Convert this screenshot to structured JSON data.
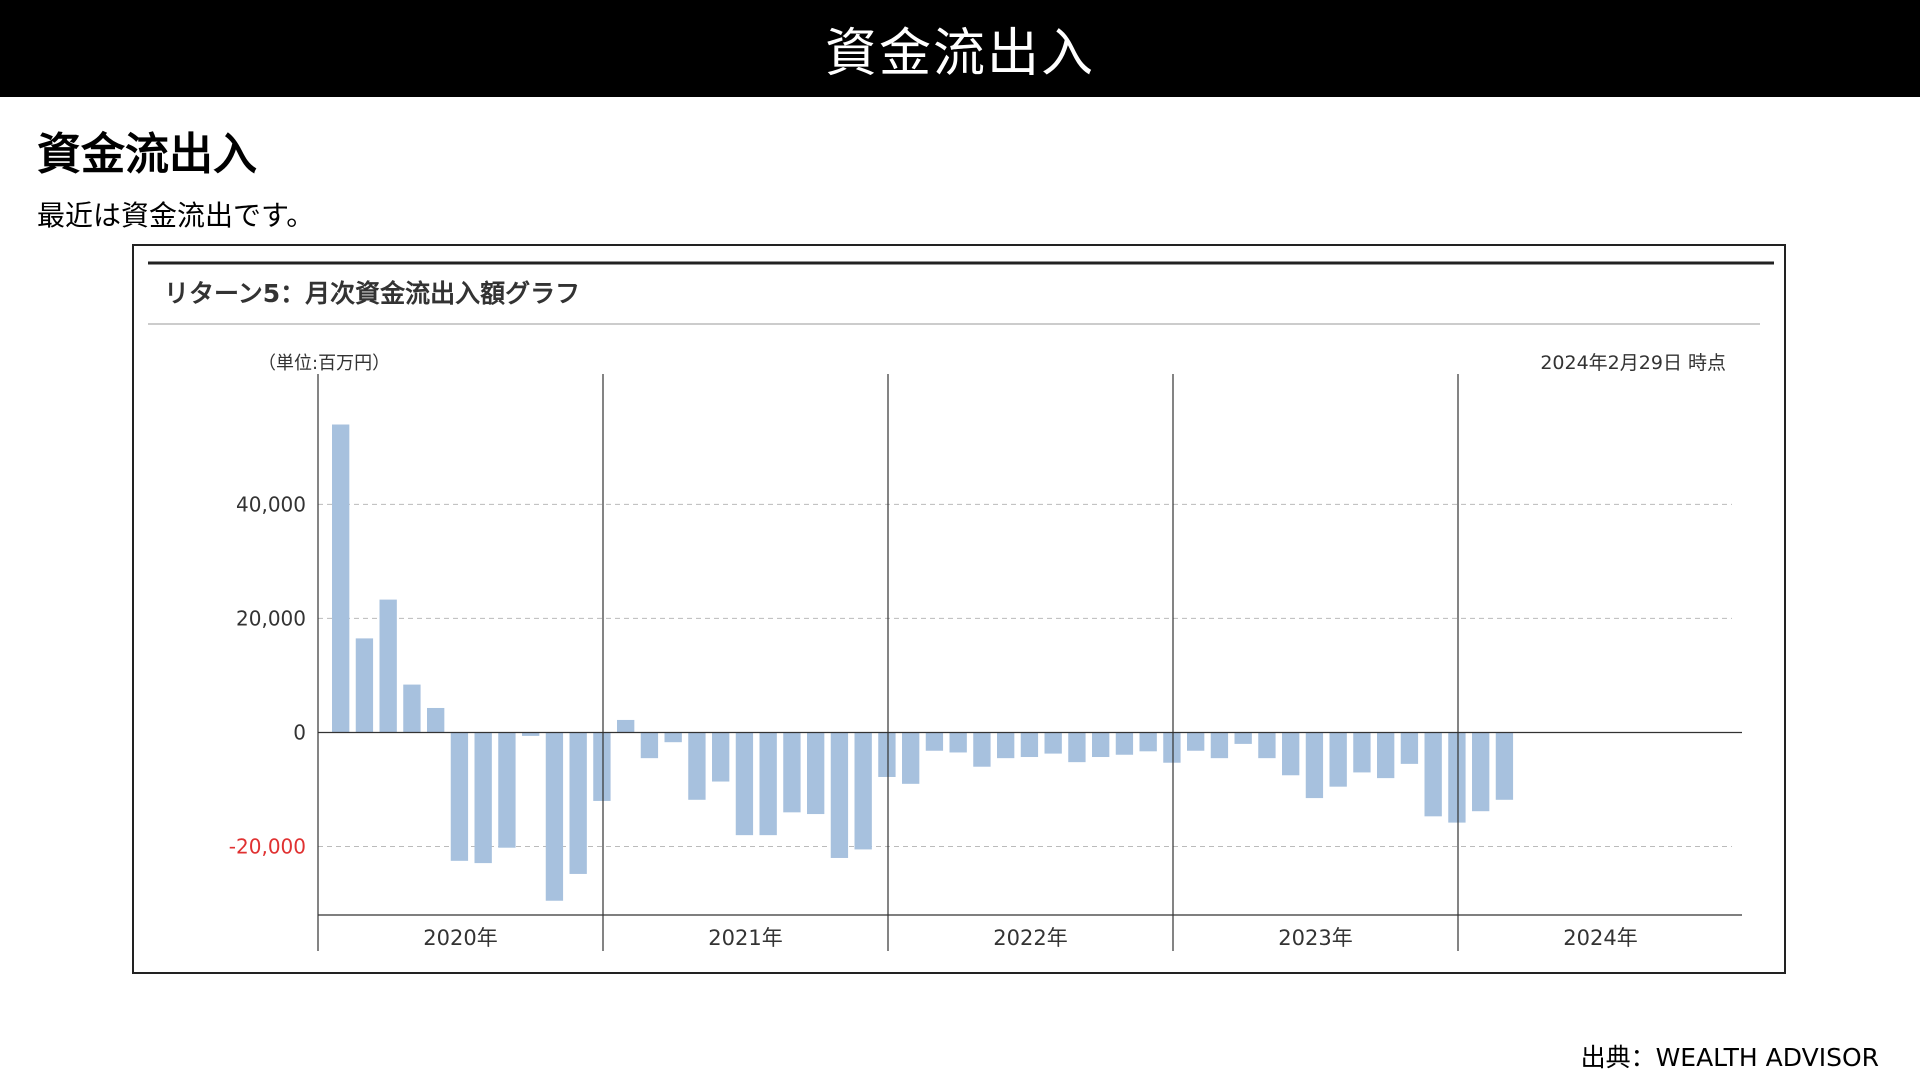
{
  "header": {
    "title": "資金流出入"
  },
  "section": {
    "title": "資金流出入",
    "description": "最近は資金流出です。"
  },
  "source": "出典：WEALTH ADVISOR",
  "chart_data": {
    "type": "bar",
    "title": "リターン5：月次資金流出入額グラフ",
    "unit_label": "（単位:百万円）",
    "as_of": "2024年2月29日 時点",
    "xlabel": "",
    "ylabel": "",
    "ylim": [
      -32000,
      59000
    ],
    "y_ticks": [
      {
        "value": 40000,
        "label": "40,000"
      },
      {
        "value": 20000,
        "label": "20,000"
      },
      {
        "value": 0,
        "label": "0"
      },
      {
        "value": -20000,
        "label": "-20,000"
      }
    ],
    "grid": true,
    "year_groups": [
      {
        "label": "2020年",
        "values": [
          54000,
          16500,
          23300,
          8400,
          4300,
          -22500,
          -22900,
          -20200,
          -600,
          -29500,
          -24800,
          -12000
        ]
      },
      {
        "label": "2021年",
        "values": [
          2200,
          -4500,
          -1700,
          -11800,
          -8600,
          -18000,
          -18000,
          -14000,
          -14300,
          -22000,
          -20500,
          -7800
        ]
      },
      {
        "label": "2022年",
        "values": [
          -9000,
          -3200,
          -3500,
          -6000,
          -4500,
          -4300,
          -3700,
          -5200,
          -4300,
          -3900,
          -3300,
          -5300
        ]
      },
      {
        "label": "2023年",
        "values": [
          -3200,
          -4500,
          -2000,
          -4500,
          -7500,
          -11500,
          -9500,
          -7000,
          -8000,
          -5500,
          -14700,
          -15800
        ]
      },
      {
        "label": "2024年",
        "values": [
          -13800,
          -11800
        ]
      }
    ],
    "colors": {
      "bar": "#a7c1de",
      "negative_tick": "#e03131",
      "axis": "#333333",
      "grid": "#bbbbbb"
    }
  }
}
